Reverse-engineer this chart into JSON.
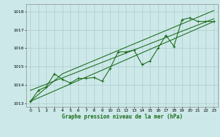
{
  "background_color": "#cce8e8",
  "grid_color": "#aacccc",
  "line_color": "#1a6b1a",
  "title": "Graphe pression niveau de la mer (hPa)",
  "ylabel_ticks": [
    1013,
    1014,
    1015,
    1016,
    1017,
    1018
  ],
  "xlim": [
    -0.5,
    23.5
  ],
  "ylim": [
    1012.8,
    1018.4
  ],
  "line1_x": [
    0,
    1,
    2,
    3,
    4,
    5,
    6,
    7,
    8,
    9,
    10,
    11,
    12,
    13,
    14,
    15,
    16,
    17,
    18,
    19,
    20,
    21,
    22,
    23
  ],
  "line1_y": [
    1013.1,
    1013.7,
    1013.9,
    1014.6,
    1014.3,
    1014.1,
    1014.35,
    1014.35,
    1014.4,
    1014.2,
    1014.9,
    1015.8,
    1015.8,
    1015.9,
    1015.1,
    1015.3,
    1016.0,
    1016.7,
    1016.1,
    1017.55,
    1017.65,
    1017.45,
    1017.45,
    1017.45
  ],
  "line2_x": [
    0,
    23
  ],
  "line2_y": [
    1013.1,
    1017.45
  ],
  "line3_x": [
    0,
    23
  ],
  "line3_y": [
    1013.7,
    1017.6
  ],
  "line4_x": [
    0,
    4,
    23
  ],
  "line4_y": [
    1013.1,
    1014.6,
    1018.05
  ]
}
